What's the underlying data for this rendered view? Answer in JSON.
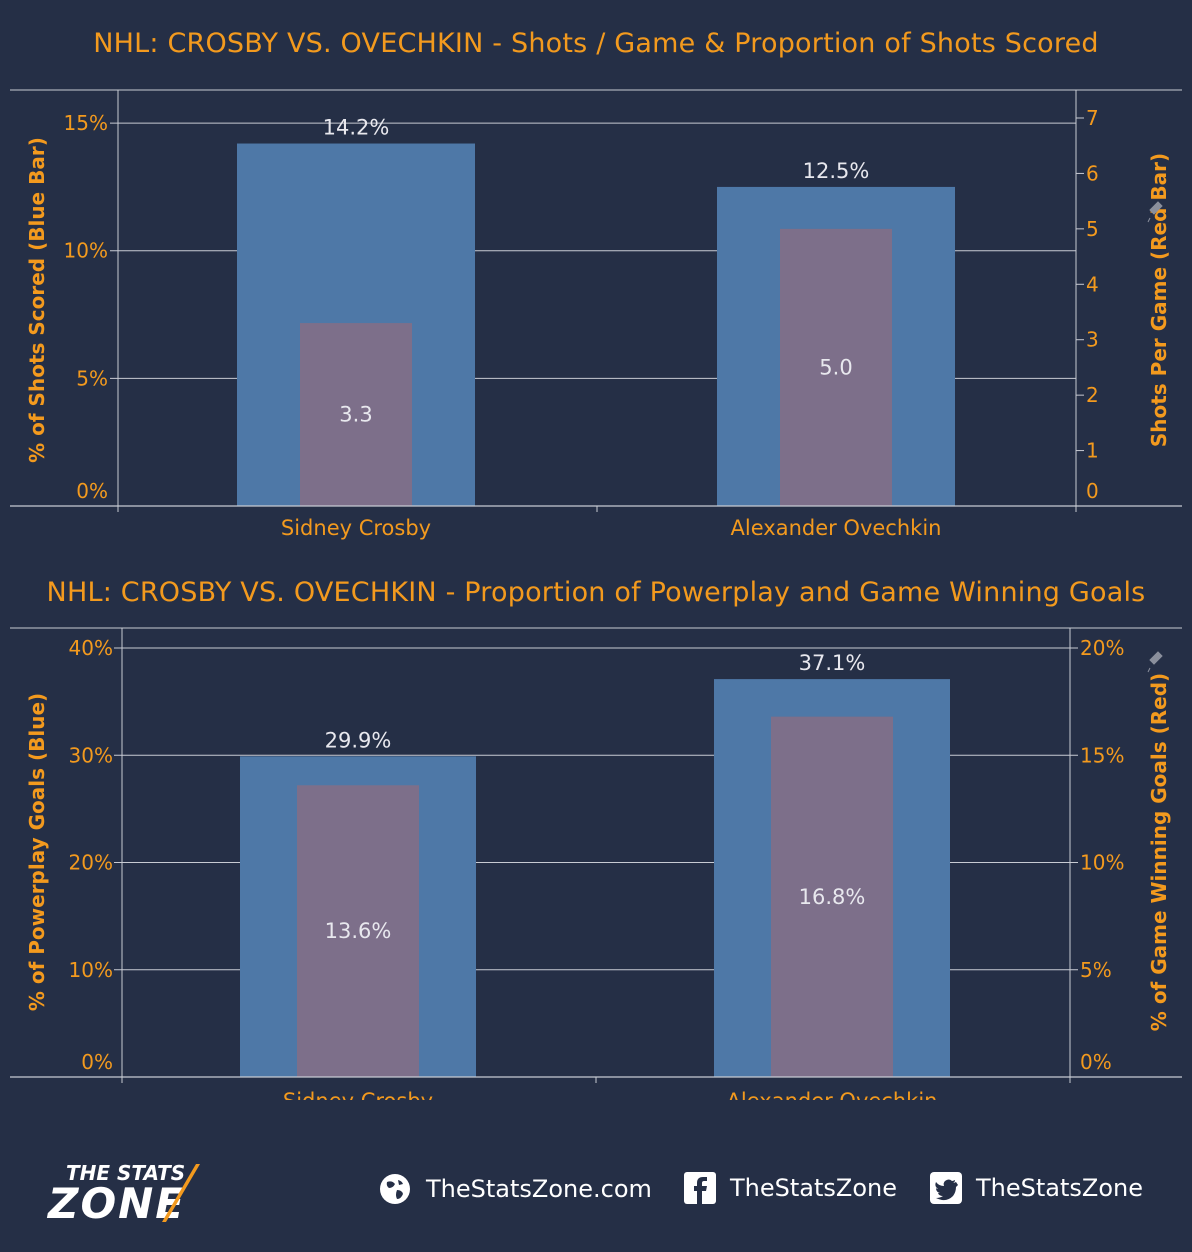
{
  "charts": [
    {
      "title": "NHL: CROSBY VS. OVECHKIN - Shots / Game & Proportion of Shots Scored",
      "ylabel_left": "% of Shots Scored (Blue Bar)",
      "ylabel_right": "Shots Per Game (Red Bar)",
      "left_ticks": [
        "0%",
        "5%",
        "10%",
        "15%"
      ],
      "right_ticks": [
        "0",
        "1",
        "2",
        "3",
        "4",
        "5",
        "6",
        "7"
      ]
    },
    {
      "title": "NHL: CROSBY VS. OVECHKIN - Proportion of Powerplay and Game Winning Goals",
      "ylabel_left": "% of Powerplay Goals (Blue)",
      "ylabel_right": "% of Game Winning Goals (Red)",
      "left_ticks": [
        "0%",
        "10%",
        "20%",
        "30%",
        "40%"
      ],
      "right_ticks": [
        "0%",
        "5%",
        "10%",
        "15%",
        "20%"
      ]
    }
  ],
  "chart_data": [
    {
      "type": "bar",
      "title": "NHL: CROSBY VS. OVECHKIN - Shots / Game & Proportion of Shots Scored",
      "categories": [
        "Sidney Crosby",
        "Alexander Ovechkin"
      ],
      "series": [
        {
          "name": "% of Shots Scored (Blue Bar)",
          "axis": "left",
          "color": "#4e78a7",
          "values": [
            14.2,
            12.5
          ],
          "labels": [
            "14.2%",
            "12.5%"
          ]
        },
        {
          "name": "Shots Per Game (Red Bar)",
          "axis": "right",
          "color": "#7d6f8a",
          "values": [
            3.3,
            5.0
          ],
          "labels": [
            "3.3",
            "5.0"
          ]
        }
      ],
      "ylabel": "% of Shots Scored (Blue Bar)",
      "y2label": "Shots Per Game (Red Bar)",
      "ylim": [
        0,
        15.2
      ],
      "y2lim": [
        0,
        7
      ],
      "grid": true
    },
    {
      "type": "bar",
      "title": "NHL: CROSBY VS. OVECHKIN - Proportion of Powerplay and Game Winning Goals",
      "categories": [
        "Sidney Crosby",
        "Alexander Ovechkin"
      ],
      "series": [
        {
          "name": "% of Powerplay Goals (Blue)",
          "axis": "left",
          "color": "#4e78a7",
          "values": [
            29.9,
            37.1
          ],
          "labels": [
            "29.9%",
            "37.1%"
          ]
        },
        {
          "name": "% of Game Winning Goals (Red)",
          "axis": "right",
          "color": "#7d6f8a",
          "values": [
            13.6,
            16.8
          ],
          "labels": [
            "13.6%",
            "16.8%"
          ]
        }
      ],
      "ylabel": "% of Powerplay Goals (Blue)",
      "y2label": "% of Game Winning Goals (Red)",
      "ylim": [
        0,
        40
      ],
      "y2lim": [
        0,
        20
      ],
      "grid": true
    }
  ],
  "colors": {
    "background": "#252f46",
    "accent": "#f39a1e",
    "blue_bar": "#4e78a7",
    "red_bar": "#7d6f8a",
    "grid": "#c8cbd3",
    "value_label": "#e8e8ee"
  },
  "footer": {
    "logo_text_top": "THE STATS",
    "logo_text_bottom": "ZONE",
    "website": "TheStatsZone.com",
    "facebook": "TheStatsZone",
    "twitter": "TheStatsZone",
    "icons": [
      "globe-icon",
      "facebook-icon",
      "twitter-icon"
    ]
  }
}
